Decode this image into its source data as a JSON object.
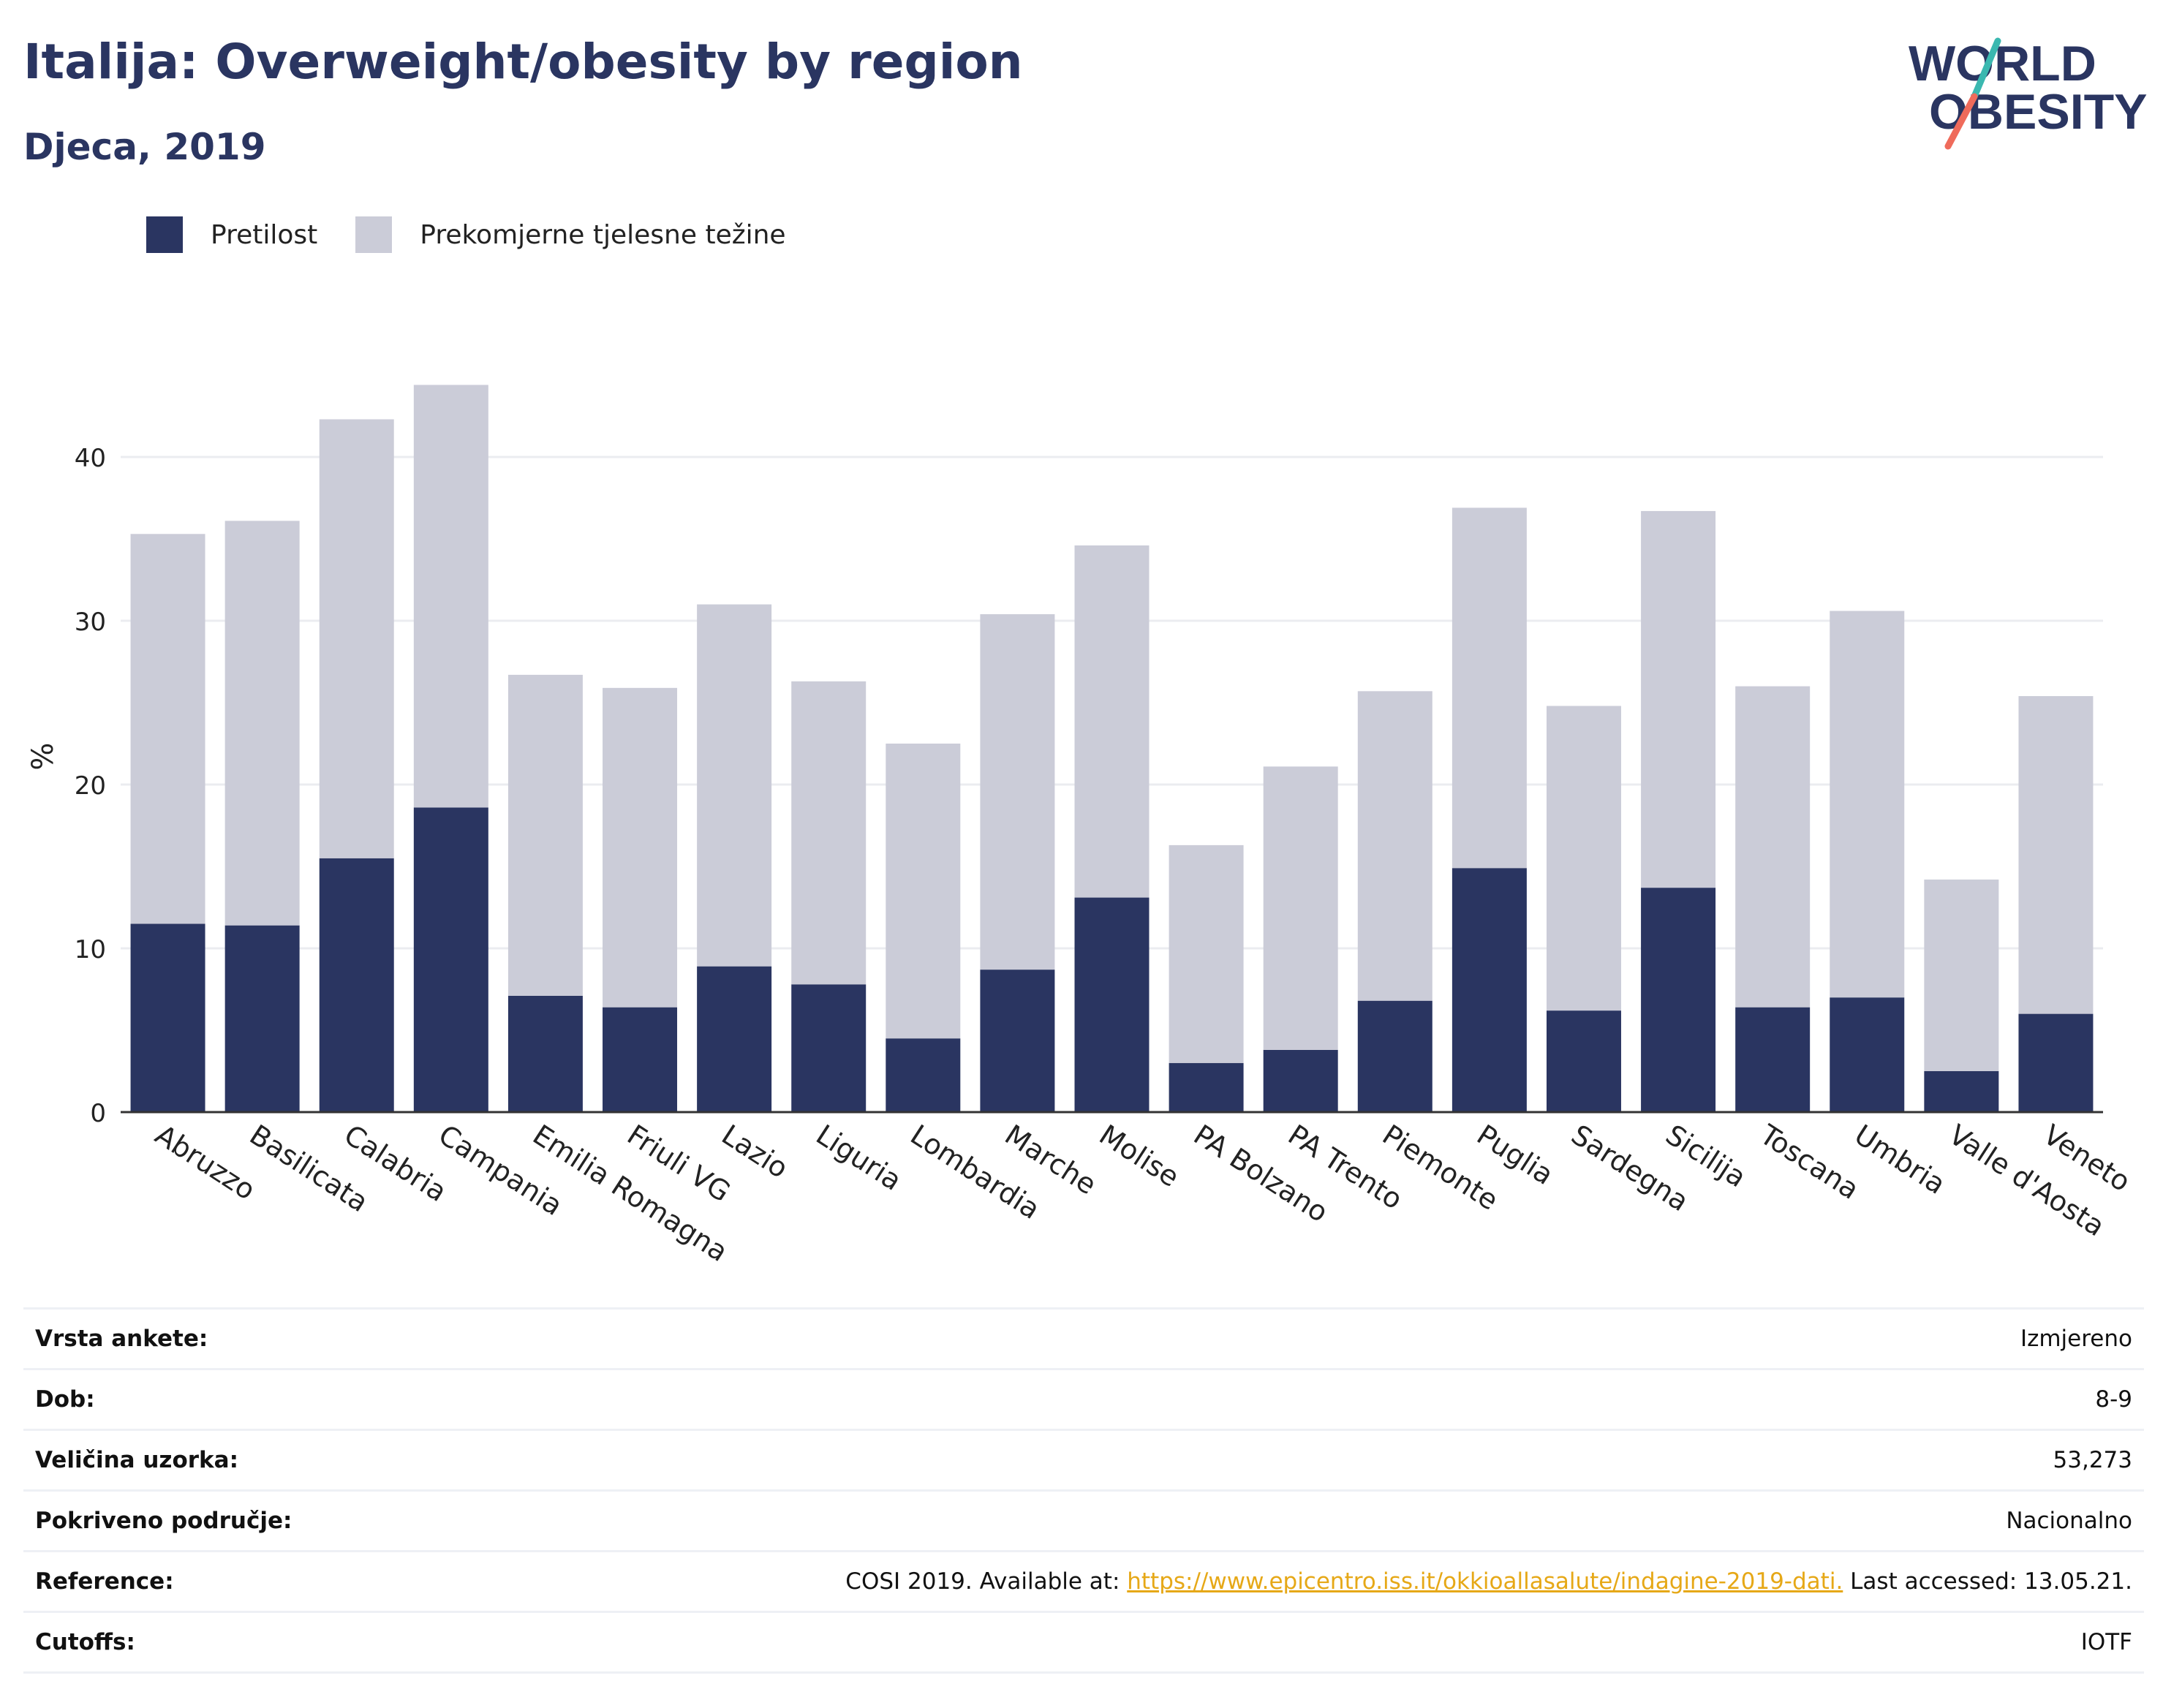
{
  "header": {
    "title": "Italija: Overweight/obesity by region",
    "subtitle": "Djeca, 2019"
  },
  "logo": {
    "line1": "WORLD",
    "line2": "OBESITY"
  },
  "legend": [
    {
      "label": "Pretilost",
      "color": "#2a3561"
    },
    {
      "label": "Prekomjerne tjelesne težine",
      "color": "#cbccd8"
    }
  ],
  "chart_data": {
    "type": "bar",
    "stacked": true,
    "ylabel": "%",
    "xlabel": "",
    "ylim": [
      0,
      47
    ],
    "yticks": [
      0,
      10,
      20,
      30,
      40
    ],
    "grid": true,
    "legend_position": "top-left",
    "categories": [
      "Abruzzo",
      "Basilicata",
      "Calabria",
      "Campania",
      "Emilia Romagna",
      "Friuli VG",
      "Lazio",
      "Liguria",
      "Lombardia",
      "Marche",
      "Molise",
      "PA Bolzano",
      "PA Trento",
      "Piemonte",
      "Puglia",
      "Sardegna",
      "Sicilija",
      "Toscana",
      "Umbria",
      "Valle d'Aosta",
      "Veneto"
    ],
    "series": [
      {
        "name": "Pretilost",
        "color": "#2a3561",
        "values": [
          11.5,
          11.4,
          15.5,
          18.6,
          7.1,
          6.4,
          8.9,
          7.8,
          4.5,
          8.7,
          13.1,
          3.0,
          3.8,
          6.8,
          14.9,
          6.2,
          13.7,
          6.4,
          7.0,
          2.5,
          6.0
        ]
      },
      {
        "name": "Prekomjerne tjelesne težine",
        "color": "#cbccd8",
        "values": [
          23.8,
          24.7,
          26.8,
          25.8,
          19.6,
          19.5,
          22.1,
          18.5,
          18.0,
          21.7,
          21.5,
          13.3,
          17.3,
          18.9,
          22.0,
          18.6,
          23.0,
          19.6,
          23.6,
          11.7,
          19.4
        ]
      }
    ]
  },
  "info": [
    {
      "label": "Vrsta ankete:",
      "value": "Izmjereno"
    },
    {
      "label": "Dob:",
      "value": "8-9"
    },
    {
      "label": "Veličina uzorka:",
      "value": "53,273"
    },
    {
      "label": "Pokriveno područje:",
      "value": "Nacionalno"
    },
    {
      "label": "Reference:",
      "value_prefix": "COSI 2019. Available at: ",
      "link": "https://www.epicentro.iss.it/okkioallasalute/indagine-2019-dati.",
      "value_suffix": " Last accessed: 13.05.21."
    },
    {
      "label": "Cutoffs:",
      "value": "IOTF"
    }
  ]
}
